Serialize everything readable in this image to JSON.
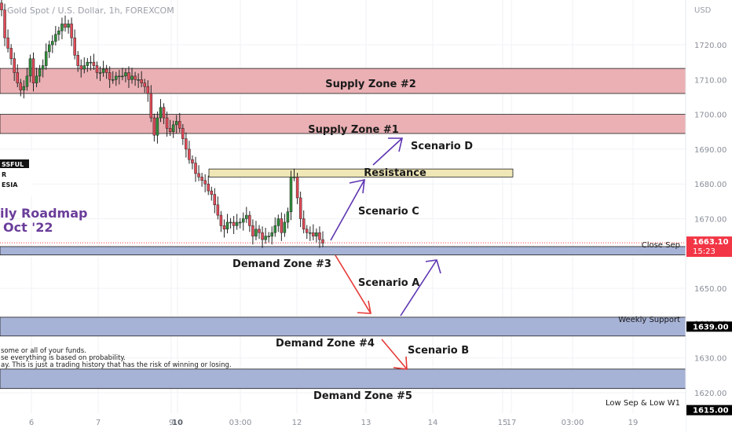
{
  "header": {
    "symbol_title": "Gold Spot / U.S. Dollar, 1h, FOREXCOM",
    "currency": "USD"
  },
  "chart_data": {
    "type": "candlestick",
    "title": "Gold Spot / U.S. Dollar, 1h, FOREXCOM",
    "ylabel": "USD",
    "ylim": [
      1613,
      1733
    ],
    "y_ticks": [
      1720,
      1710,
      1700,
      1690,
      1680,
      1670,
      1660,
      1650,
      1640,
      1630,
      1620
    ],
    "x_ticks": [
      "6",
      "7",
      "9",
      "10",
      "03:00",
      "12",
      "13",
      "14",
      "15",
      "17",
      "03:00",
      "19"
    ],
    "price_markers": [
      {
        "label": "1663.10",
        "sub": "15:23",
        "value": 1663.1,
        "color": "#f23645"
      },
      {
        "label": "1639.00",
        "value": 1639.0,
        "color": "#000000"
      },
      {
        "label": "1615.00",
        "value": 1615.0,
        "color": "#000000"
      }
    ],
    "level_labels": [
      {
        "text": "Close Sep",
        "value": 1663.1
      },
      {
        "text": "Weekly Support",
        "value": 1640.9
      },
      {
        "text": "Low Sep & Low W1",
        "value": 1617.0
      }
    ],
    "zones": [
      {
        "label": "Supply Zone #2",
        "from": 1706,
        "to": 1713.2,
        "kind": "supply"
      },
      {
        "label": "Supply Zone #1",
        "from": 1694.5,
        "to": 1700,
        "kind": "supply"
      },
      {
        "label": "Resistance",
        "from": 1682,
        "to": 1684.3,
        "kind": "resistance"
      },
      {
        "label": "Demand Zone #3",
        "from": 1659.6,
        "to": 1662,
        "kind": "demand"
      },
      {
        "label": "Demand Zone #4",
        "from": 1636.3,
        "to": 1641.7,
        "kind": "demand"
      },
      {
        "label": "Demand Zone #5",
        "from": 1621.2,
        "to": 1626.8,
        "kind": "demand"
      }
    ],
    "scenarios": [
      {
        "label": "Scenario A",
        "color": "#e53935"
      },
      {
        "label": "Scenario B",
        "color": "#e53935"
      },
      {
        "label": "Scenario C",
        "color": "#5e35b1"
      },
      {
        "label": "Scenario D",
        "color": "#5e35b1"
      }
    ],
    "closes": [
      1730,
      1722,
      1719,
      1716,
      1712,
      1709,
      1707,
      1708,
      1711,
      1716,
      1709,
      1711,
      1713,
      1714,
      1718,
      1720,
      1721,
      1723,
      1724,
      1726,
      1725,
      1726,
      1722,
      1717,
      1714,
      1713,
      1714,
      1715,
      1715,
      1714,
      1712,
      1712,
      1713,
      1712,
      1710,
      1710,
      1711,
      1711,
      1711,
      1712,
      1710,
      1711,
      1710,
      1710,
      1709,
      1708,
      1706,
      1699,
      1694,
      1699,
      1702,
      1699,
      1696,
      1695,
      1697,
      1698,
      1696,
      1693,
      1690,
      1687,
      1686,
      1683,
      1682,
      1681,
      1680,
      1678,
      1677,
      1674,
      1671,
      1668,
      1667,
      1669,
      1669,
      1668,
      1669,
      1669,
      1670,
      1671,
      1668,
      1665,
      1667,
      1666,
      1664,
      1665,
      1665,
      1666,
      1668,
      1670,
      1666,
      1669,
      1672,
      1682,
      1682,
      1676,
      1670,
      1667,
      1666,
      1666,
      1665,
      1666,
      1664,
      1663
    ]
  },
  "overlay": {
    "logo_lines": [
      "SSFUL",
      "R",
      "ESIA"
    ],
    "roadmap_line1": "ily Roadmap",
    "roadmap_line2": "Oct '22",
    "disclaimer_lines": [
      "some or all of your funds.",
      "se everything is based on probability.",
      "ay. This is just a trading history that has the risk of winning or losing."
    ]
  },
  "colors": {
    "supply": "#eab0b4",
    "resistance": "#efe7b6",
    "demand": "#a6b2d6",
    "bull": "#2f8f3a",
    "bear": "#e24a57",
    "accent_text": "#6a3d9a"
  }
}
